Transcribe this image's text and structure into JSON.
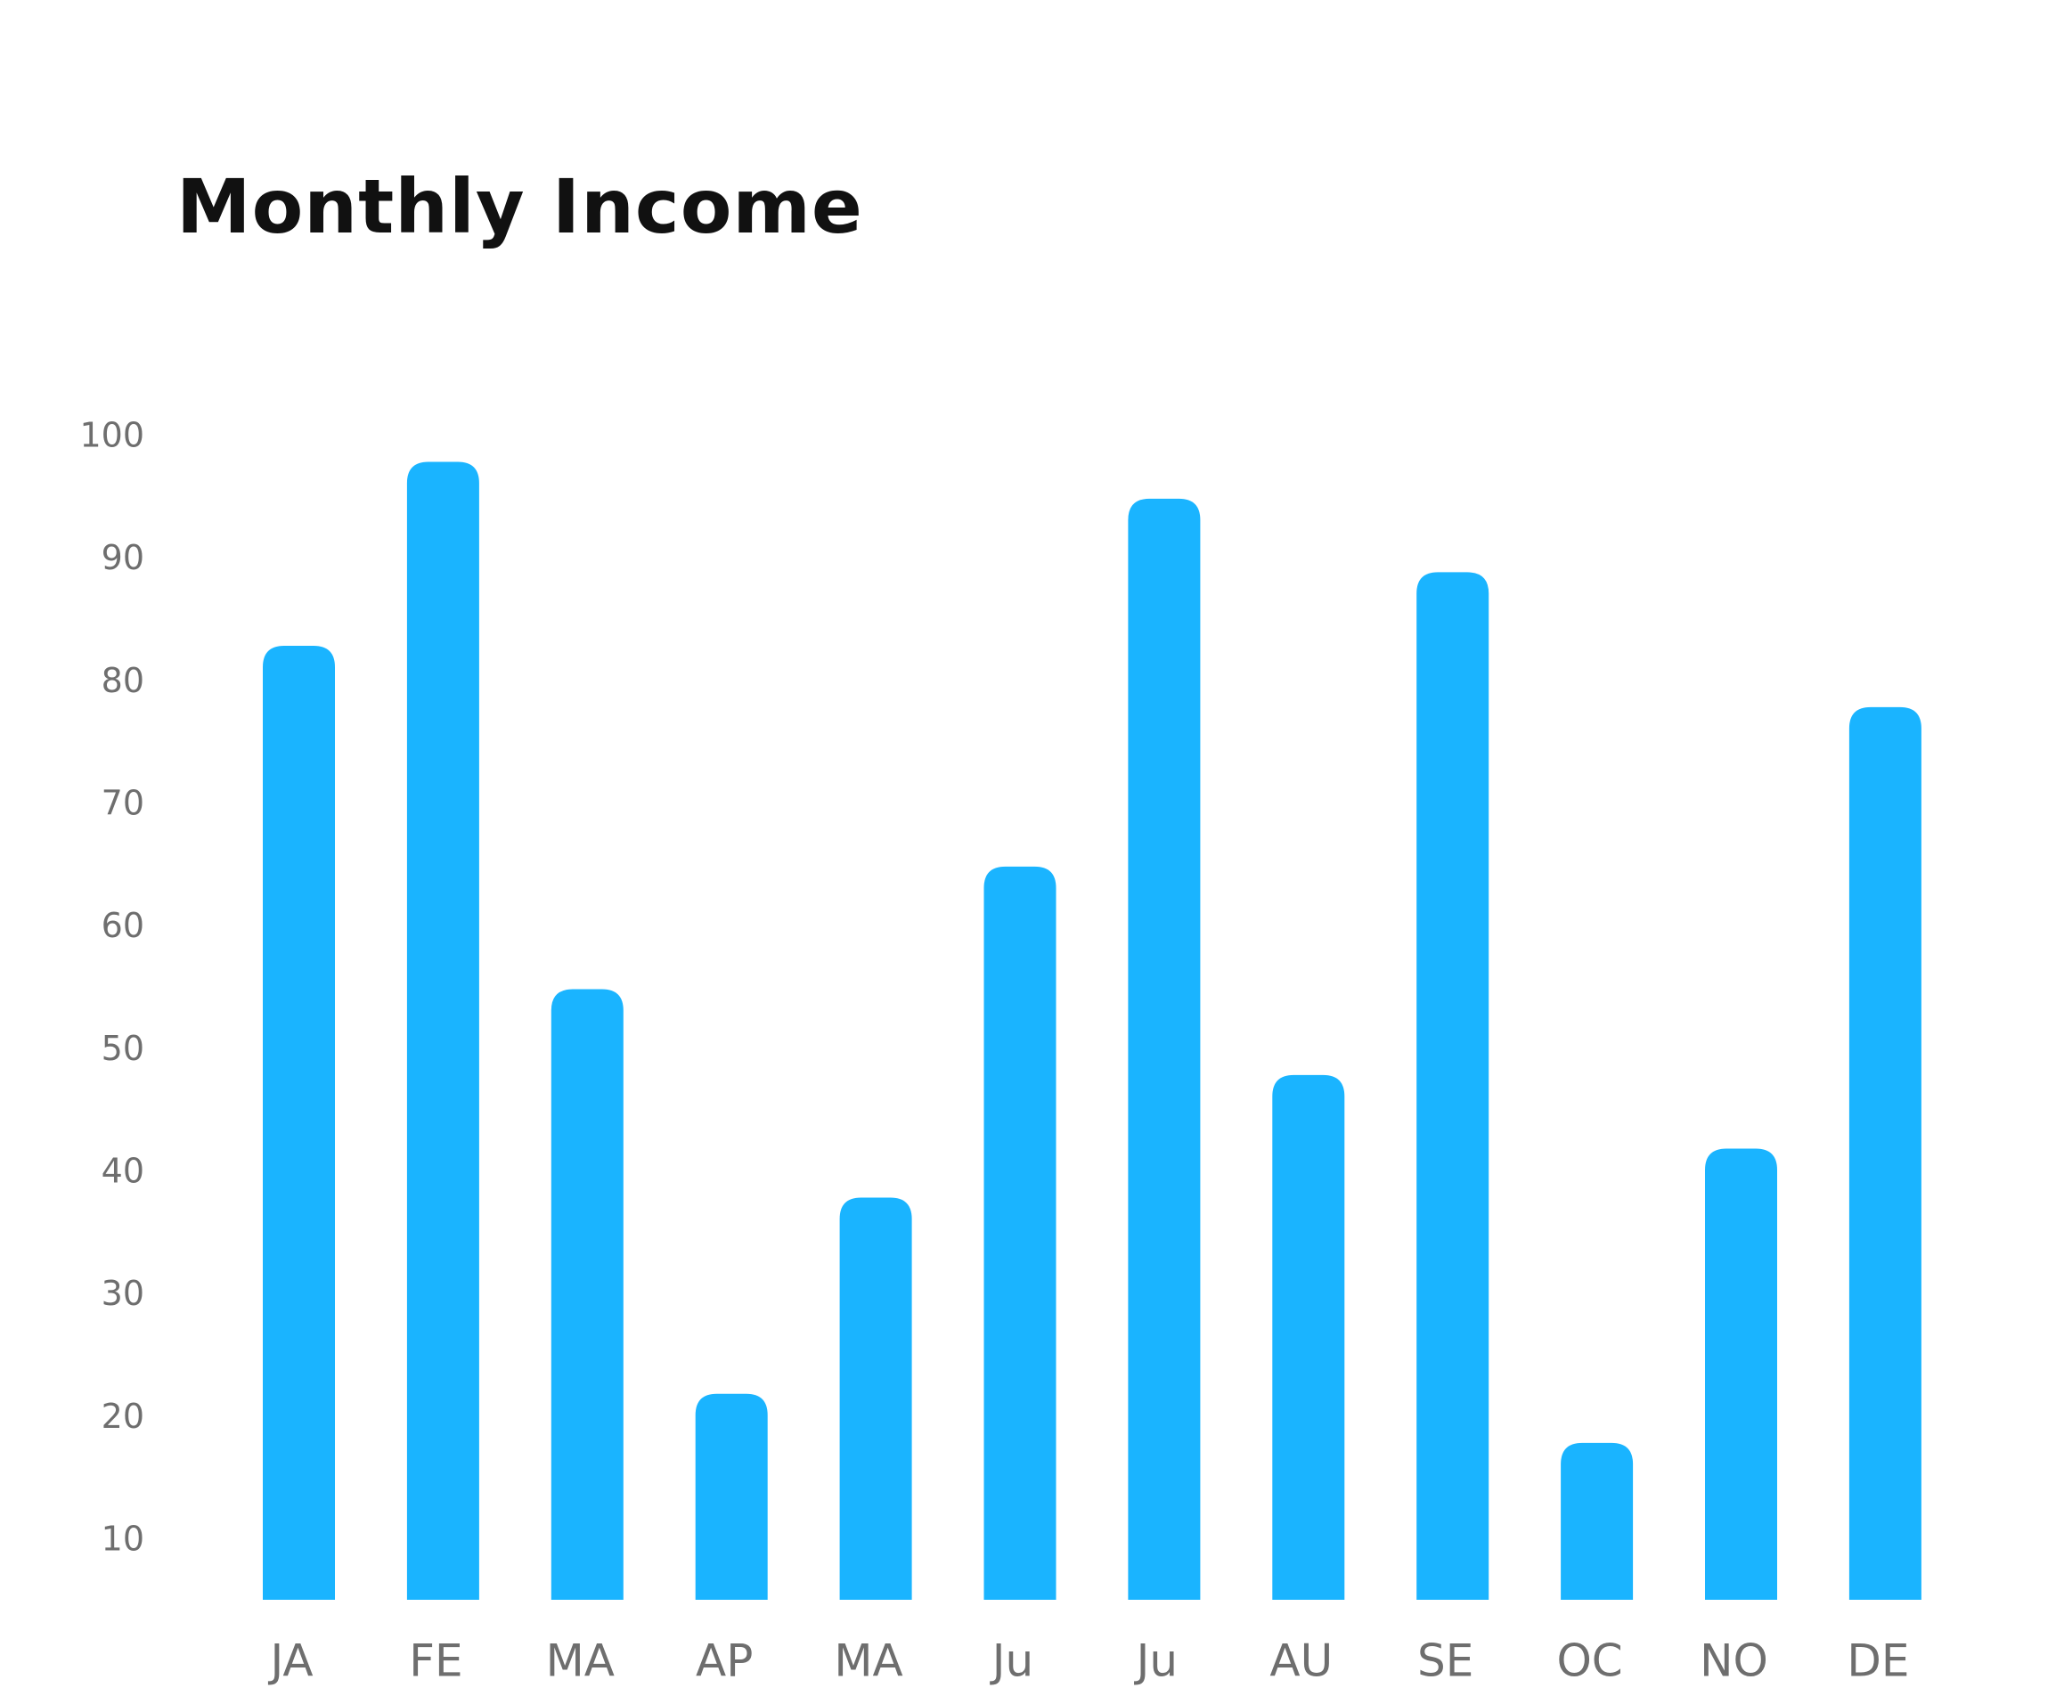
{
  "chart_data": {
    "type": "bar",
    "title": "Monthly Income",
    "xlabel": "",
    "ylabel": "",
    "categories": [
      "JA",
      "FE",
      "MA",
      "AP",
      "MA",
      "Ju",
      "Ju",
      "AU",
      "SE",
      "OC",
      "NO",
      "DE"
    ],
    "values": [
      83,
      98,
      55,
      22,
      38,
      65,
      95,
      48,
      89,
      18,
      42,
      78
    ],
    "y_ticks": [
      "10",
      "20",
      "30",
      "40",
      "50",
      "60",
      "70",
      "80",
      "90",
      "100"
    ],
    "ylim": [
      5,
      100
    ],
    "grid": false,
    "legend": "none",
    "bar_color": "#1AB4FF"
  }
}
